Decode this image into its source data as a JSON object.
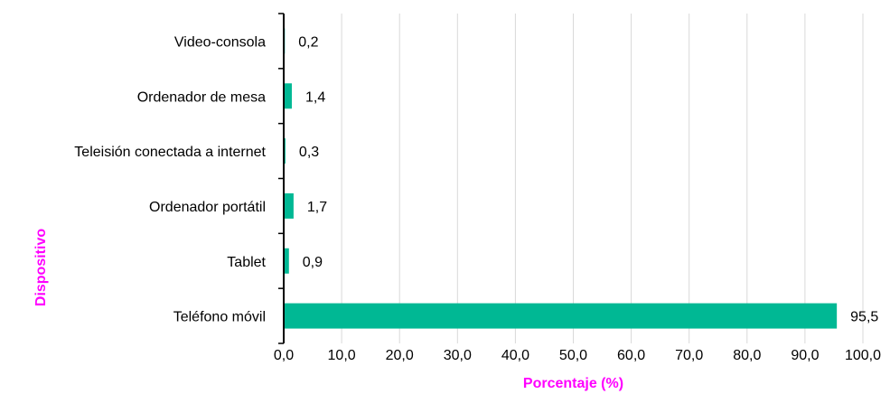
{
  "chart_data": {
    "type": "bar",
    "orientation": "horizontal",
    "categories": [
      "Video-consola",
      "Ordenador de mesa",
      "Teleisión conectada a internet",
      "Ordenador portátil",
      "Tablet",
      "Teléfono móvil"
    ],
    "values": [
      0.2,
      1.4,
      0.3,
      1.7,
      0.9,
      95.5
    ],
    "value_labels": [
      "0,2",
      "1,4",
      "0,3",
      "1,7",
      "0,9",
      "95,5"
    ],
    "xlabel": "Porcentaje (%)",
    "ylabel": "Dispositivo",
    "xlim": [
      0,
      100
    ],
    "x_ticks": [
      "0,0",
      "10,0",
      "20,0",
      "30,0",
      "40,0",
      "50,0",
      "60,0",
      "70,0",
      "80,0",
      "90,0",
      "100,0"
    ],
    "grid": "vertical",
    "legend": "none"
  },
  "colors": {
    "bar": "#00b894",
    "axis_title": "#ff00ff",
    "grid": "#d9d9d9",
    "axis": "#000000"
  }
}
